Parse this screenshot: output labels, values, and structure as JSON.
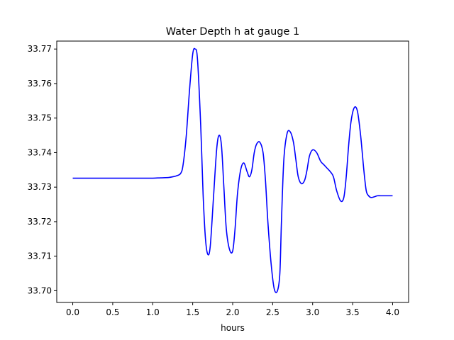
{
  "chart_data": {
    "type": "line",
    "title": "Water Depth h at gauge 1",
    "xlabel": "hours",
    "ylabel": "",
    "xlim": [
      -0.2,
      4.2
    ],
    "ylim": [
      33.6966,
      33.7723
    ],
    "x_ticks": [
      0.0,
      0.5,
      1.0,
      1.5,
      2.0,
      2.5,
      3.0,
      3.5,
      4.0
    ],
    "x_tick_labels": [
      "0.0",
      "0.5",
      "1.0",
      "1.5",
      "2.0",
      "2.5",
      "3.0",
      "3.5",
      "4.0"
    ],
    "y_ticks": [
      33.7,
      33.71,
      33.72,
      33.73,
      33.74,
      33.75,
      33.76,
      33.77
    ],
    "y_tick_labels": [
      "33.70",
      "33.71",
      "33.72",
      "33.73",
      "33.74",
      "33.75",
      "33.76",
      "33.77"
    ],
    "grid": false,
    "series": [
      {
        "color": "#0000ff",
        "x": [
          0.0,
          0.3,
          0.6,
          0.9,
          1.0,
          1.1,
          1.2,
          1.25,
          1.3,
          1.35,
          1.38,
          1.42,
          1.46,
          1.5,
          1.53,
          1.56,
          1.6,
          1.63,
          1.66,
          1.69,
          1.72,
          1.76,
          1.8,
          1.83,
          1.86,
          1.89,
          1.92,
          1.96,
          2.0,
          2.03,
          2.06,
          2.1,
          2.14,
          2.18,
          2.21,
          2.24,
          2.27,
          2.3,
          2.34,
          2.38,
          2.41,
          2.44,
          2.48,
          2.52,
          2.56,
          2.59,
          2.61,
          2.64,
          2.68,
          2.72,
          2.76,
          2.79,
          2.82,
          2.86,
          2.9,
          2.93,
          2.96,
          3.0,
          3.05,
          3.1,
          3.14,
          3.18,
          3.22,
          3.26,
          3.3,
          3.35,
          3.39,
          3.42,
          3.45,
          3.48,
          3.52,
          3.56,
          3.6,
          3.64,
          3.67,
          3.7,
          3.73,
          3.77,
          3.81,
          3.85,
          3.89,
          3.93,
          3.97,
          4.0
        ],
        "y": [
          33.7326,
          33.7326,
          33.7326,
          33.7326,
          33.7326,
          33.7327,
          33.7328,
          33.733,
          33.7333,
          33.734,
          33.7365,
          33.745,
          33.758,
          33.7685,
          33.77,
          33.767,
          33.748,
          33.728,
          33.715,
          33.7105,
          33.713,
          33.727,
          33.741,
          33.745,
          33.742,
          33.73,
          33.718,
          33.712,
          33.7115,
          33.718,
          33.728,
          33.735,
          33.737,
          33.7345,
          33.733,
          33.735,
          33.74,
          33.7425,
          33.743,
          33.74,
          33.732,
          33.72,
          33.708,
          33.7005,
          33.7,
          33.705,
          33.72,
          33.738,
          33.7455,
          33.746,
          33.743,
          33.738,
          33.733,
          33.731,
          33.732,
          33.735,
          33.739,
          33.7408,
          33.74,
          33.7375,
          33.7365,
          33.7355,
          33.7345,
          33.733,
          33.729,
          33.726,
          33.727,
          33.733,
          33.742,
          33.749,
          33.753,
          33.752,
          33.745,
          33.735,
          33.729,
          33.7275,
          33.727,
          33.7272,
          33.7275,
          33.7275,
          33.7275,
          33.7275,
          33.7275,
          33.7275
        ]
      }
    ]
  }
}
